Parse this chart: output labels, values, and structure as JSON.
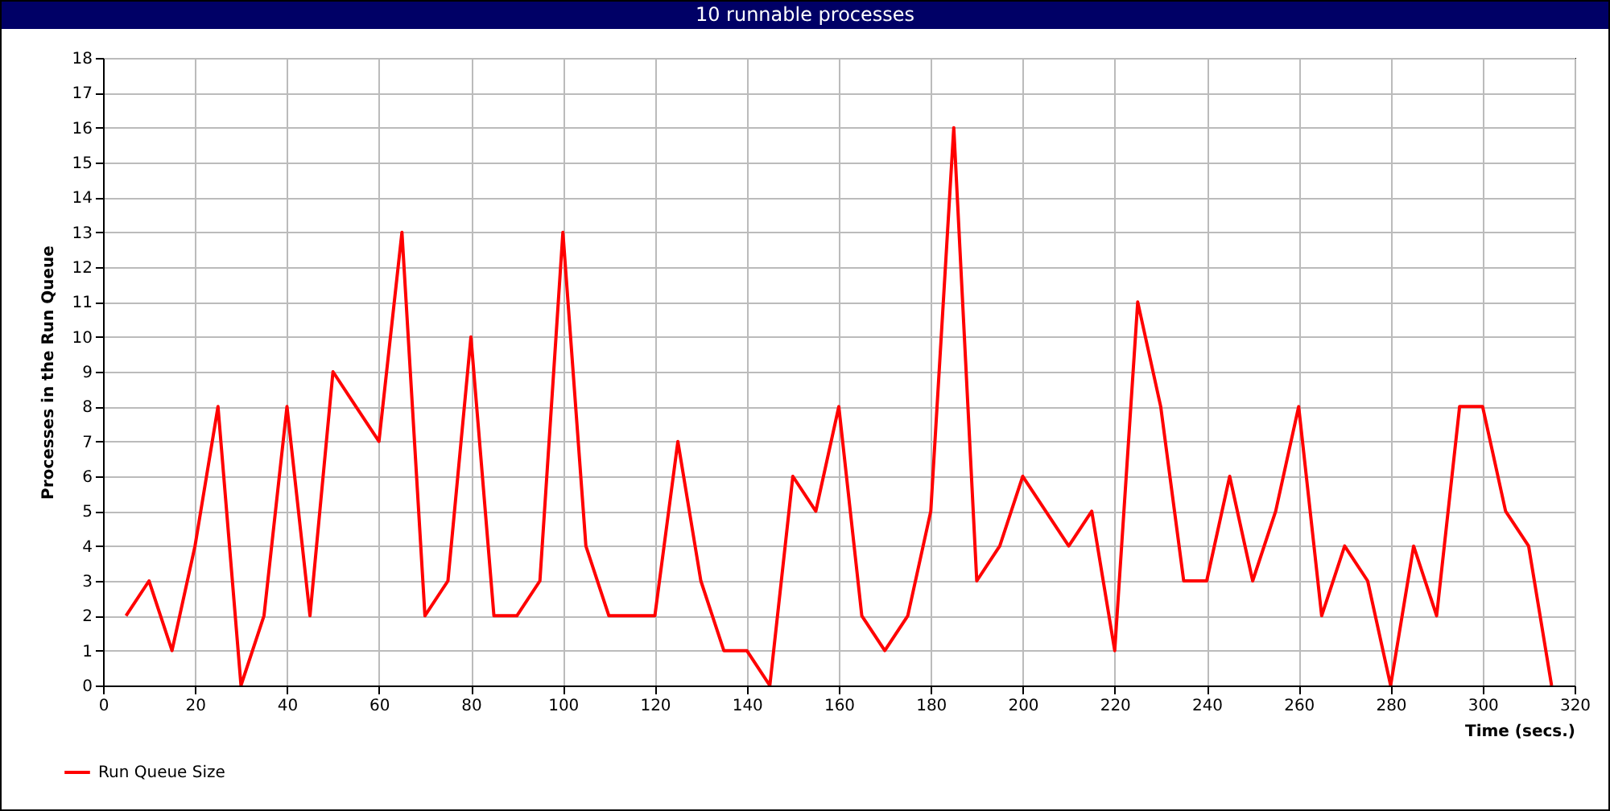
{
  "chart_data": {
    "type": "line",
    "title": "10 runnable processes",
    "xlabel": "Time (secs.)",
    "ylabel": "Processes in the Run Queue",
    "x": [
      5,
      10,
      15,
      20,
      25,
      30,
      35,
      40,
      45,
      50,
      55,
      60,
      65,
      70,
      75,
      80,
      85,
      90,
      95,
      100,
      105,
      110,
      115,
      120,
      125,
      130,
      135,
      140,
      145,
      150,
      155,
      160,
      165,
      170,
      175,
      180,
      185,
      190,
      195,
      200,
      205,
      210,
      215,
      220,
      225,
      230,
      235,
      240,
      245,
      250,
      255,
      260,
      265,
      270,
      275,
      280,
      285,
      290,
      295,
      300,
      305,
      310,
      315
    ],
    "series": [
      {
        "name": "Run Queue Size",
        "color": "#ff0000",
        "values": [
          2,
          3,
          1,
          4,
          8,
          0,
          2,
          8,
          2,
          9,
          8,
          7,
          13,
          2,
          3,
          10,
          2,
          2,
          3,
          13,
          4,
          2,
          2,
          2,
          7,
          3,
          1,
          1,
          0,
          6,
          5,
          8,
          2,
          1,
          2,
          5,
          16,
          3,
          4,
          6,
          5,
          4,
          5,
          1,
          11,
          8,
          3,
          3,
          6,
          3,
          5,
          8,
          2,
          4,
          3,
          0,
          4,
          2,
          8,
          8,
          5,
          4,
          0
        ]
      }
    ],
    "xlim": [
      0,
      320
    ],
    "ylim": [
      0,
      18
    ],
    "xticks": [
      0,
      20,
      40,
      60,
      80,
      100,
      120,
      140,
      160,
      180,
      200,
      220,
      240,
      260,
      280,
      300,
      320
    ],
    "yticks": [
      0,
      1,
      2,
      3,
      4,
      5,
      6,
      7,
      8,
      9,
      10,
      11,
      12,
      13,
      14,
      15,
      16,
      17,
      18
    ],
    "grid": true,
    "legend": "bottom left"
  }
}
